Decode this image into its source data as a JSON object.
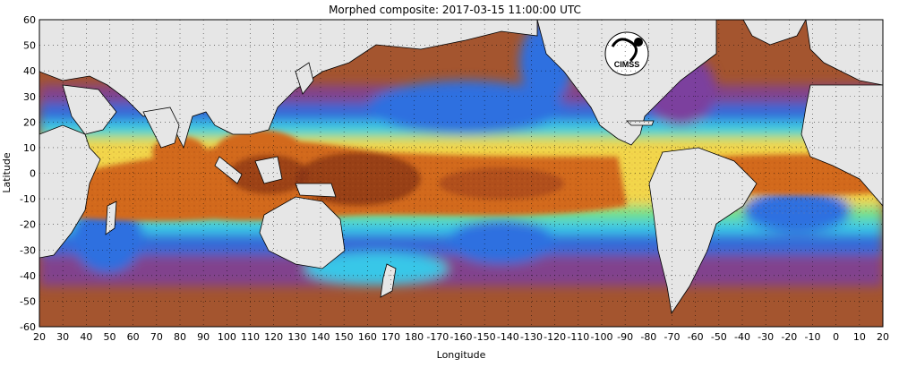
{
  "title": "Morphed composite: 2017-03-15 11:00:00 UTC",
  "axes": {
    "xlabel": "Longitude",
    "ylabel": "Latitude",
    "x_ticks": [
      "20",
      "30",
      "40",
      "50",
      "60",
      "70",
      "80",
      "90",
      "100",
      "110",
      "120",
      "130",
      "140",
      "150",
      "160",
      "170",
      "180",
      "-170",
      "-160",
      "-150",
      "-140",
      "-130",
      "-120",
      "-110",
      "-100",
      "-90",
      "-80",
      "-70",
      "-60",
      "-50",
      "-40",
      "-30",
      "-20",
      "-10",
      "0",
      "10",
      "20"
    ],
    "y_ticks": [
      "60",
      "50",
      "40",
      "30",
      "20",
      "10",
      "0",
      "-10",
      "-20",
      "-30",
      "-40",
      "-50",
      "-60"
    ],
    "lon_range": [
      20,
      380
    ],
    "lat_range": [
      -60,
      60
    ],
    "grid": "dotted"
  },
  "logo": {
    "text": "CIMSS"
  },
  "colors": {
    "ocean_dry": "#a0522d",
    "land": "#e6e6e6",
    "moist_orange": "#d2691e",
    "moist_dark": "#7a2e0e",
    "mid_yellow": "#f2d64b",
    "green": "#6fe08a",
    "cyan": "#39c7e8",
    "blue": "#2f6fe0",
    "purple": "#7b3f9e",
    "magenta": "#9b3c7a"
  }
}
